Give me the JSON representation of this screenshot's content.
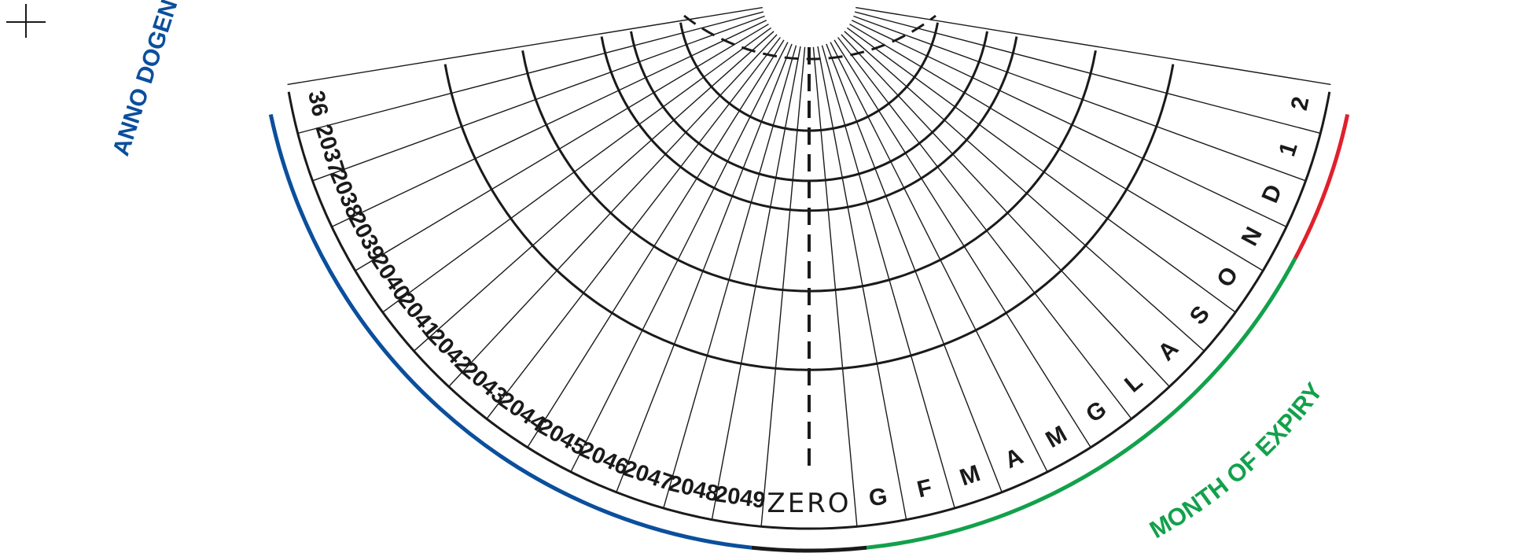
{
  "dial": {
    "year_labels": [
      "36",
      "2037",
      "2038",
      "2039",
      "2040",
      "2041",
      "2042",
      "2043",
      "2044",
      "2045",
      "2046",
      "2047",
      "2048",
      "2049"
    ],
    "zero_label": "ZERO",
    "month_labels": [
      "G",
      "F",
      "M",
      "A",
      "M",
      "G",
      "L",
      "A",
      "S",
      "O",
      "N",
      "D",
      "1",
      "2"
    ],
    "month_caption": "MONTH OF EXPIRY",
    "year_caption_fragment": "ANNO DOGEN",
    "colors": {
      "line": "#1a1a1a",
      "years_band": "#0b4f9c",
      "months_band": "#12a14b",
      "marker": "#e0212b"
    }
  }
}
